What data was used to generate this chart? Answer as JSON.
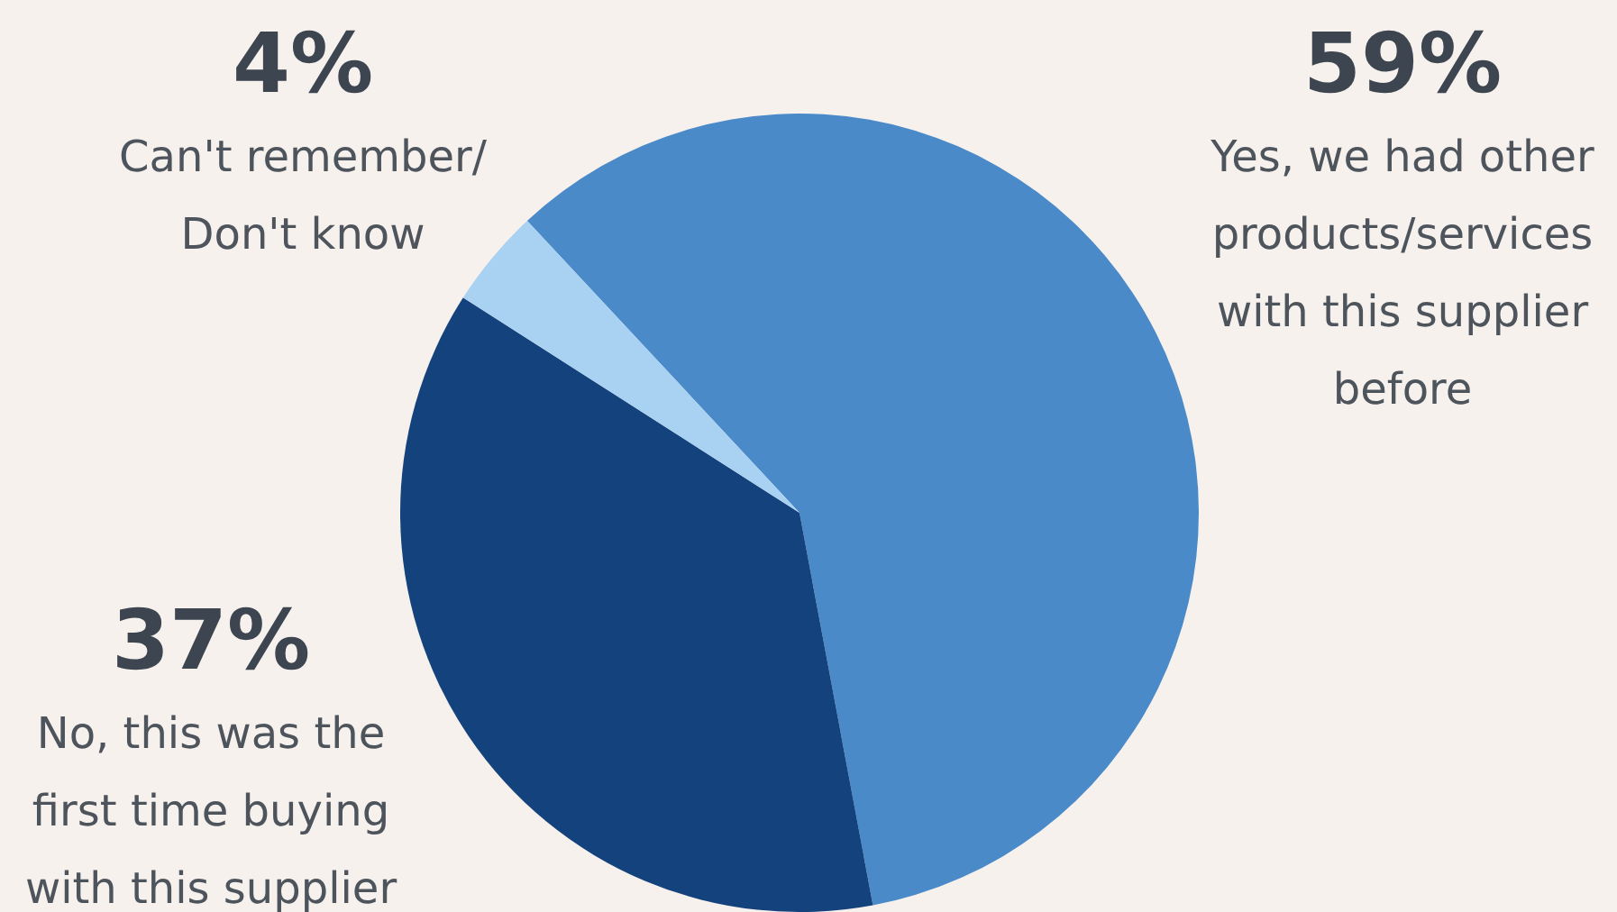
{
  "chart_data": {
    "type": "pie",
    "categories": [
      "Yes, we had other products/services with this supplier before",
      "No, this was the first time buying with this supplier",
      "Can't remember/ Don't know"
    ],
    "values": [
      59,
      37,
      4
    ],
    "value_labels": [
      "59%",
      "37%",
      "4%"
    ],
    "colors": [
      "#4a8ac8",
      "#13427c",
      "#a9d1f2"
    ],
    "legend": false
  }
}
